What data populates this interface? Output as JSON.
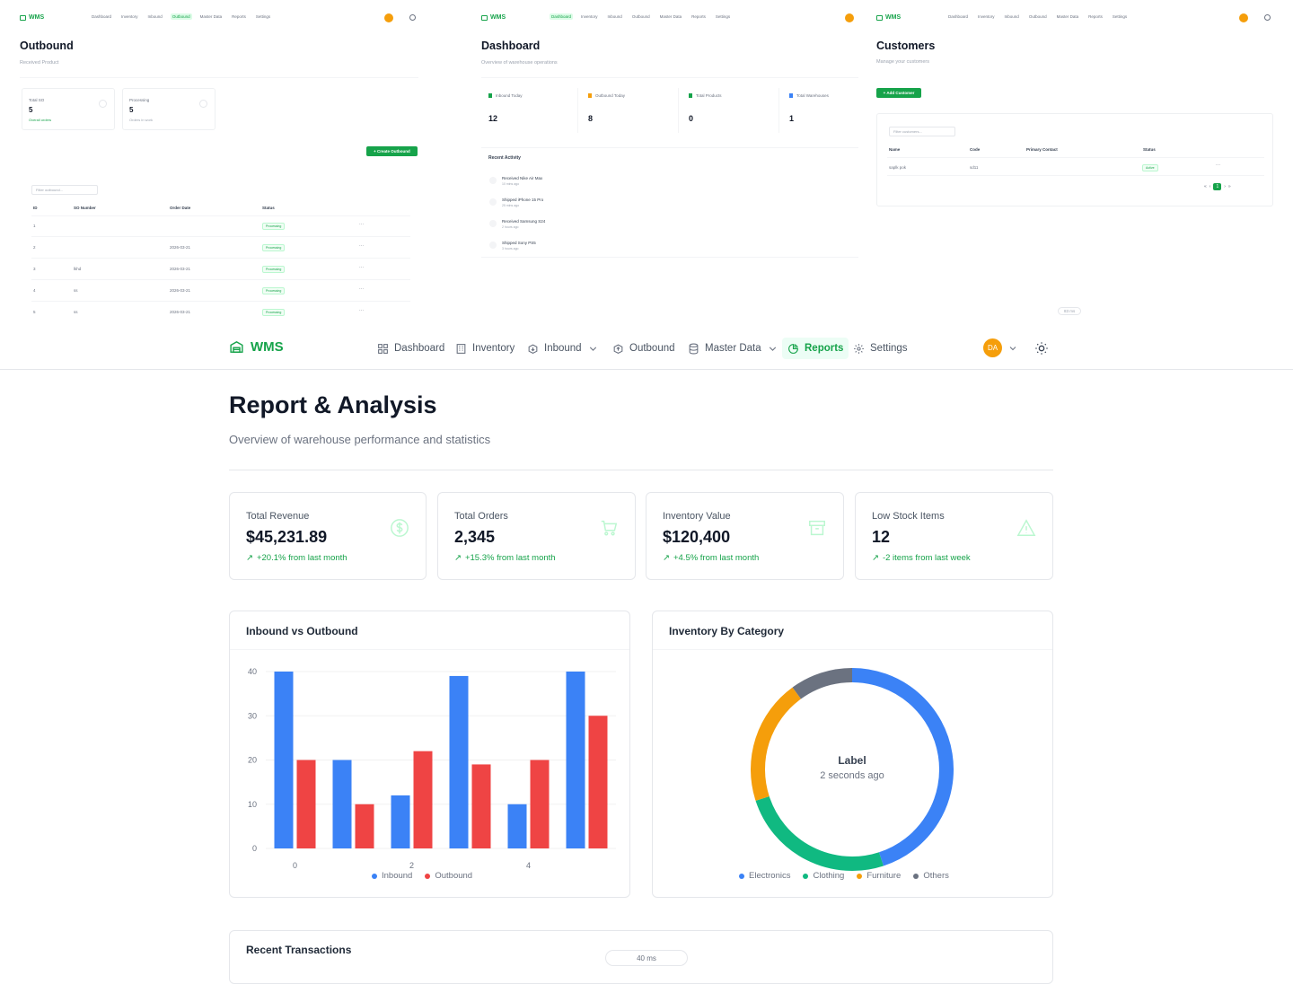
{
  "brand": "WMS",
  "user_initials": "DA",
  "nav": {
    "dashboard": "Dashboard",
    "inventory": "Inventory",
    "inbound": "Inbound",
    "outbound": "Outbound",
    "master_data": "Master Data",
    "reports": "Reports",
    "settings": "Settings"
  },
  "outbound_panel": {
    "title": "Outbound",
    "subtitle": "Received Product",
    "cards": [
      {
        "label": "Total SO",
        "value": "5",
        "trend": "Overall orders"
      },
      {
        "label": "Processing",
        "value": "5",
        "trend": "Orders in work"
      }
    ],
    "create_button": "+ Create Outbound",
    "filter_placeholder": "Filter outbound...",
    "columns": [
      "ID",
      "SO Number",
      "Order Date",
      "Status"
    ],
    "rows": [
      {
        "id": "1",
        "so": "",
        "date": "",
        "status": "Processing"
      },
      {
        "id": "2",
        "so": "",
        "date": "2026-03-21",
        "status": "Processing"
      },
      {
        "id": "3",
        "so": "lkhd",
        "date": "2026-03-21",
        "status": "Processing"
      },
      {
        "id": "4",
        "so": "ss",
        "date": "2026-03-21",
        "status": "Processing"
      },
      {
        "id": "5",
        "so": "ss",
        "date": "2026-03-21",
        "status": "Processing"
      }
    ]
  },
  "dashboard_panel": {
    "title": "Dashboard",
    "subtitle": "Overview of warehouse operations",
    "stats": [
      {
        "label": "Inbound Today",
        "value": "12"
      },
      {
        "label": "Outbound Today",
        "value": "8"
      },
      {
        "label": "Total Products",
        "value": "0"
      },
      {
        "label": "Total Warehouses",
        "value": "1"
      }
    ],
    "recent_title": "Recent Activity",
    "activities": [
      {
        "text": "Received Nike Air Max",
        "time": "10 mins ago"
      },
      {
        "text": "Shipped iPhone 15 Pro",
        "time": "25 mins ago"
      },
      {
        "text": "Received Samsung S24",
        "time": "2 hours ago"
      },
      {
        "text": "Shipped Sony PS5",
        "time": "3 hours ago"
      }
    ]
  },
  "customers_panel": {
    "title": "Customers",
    "subtitle": "Manage your customers",
    "add_button": "+ Add Customer",
    "filter_placeholder": "Filter customers...",
    "columns": [
      "Name",
      "Code",
      "Primary Contact",
      "Status"
    ],
    "rows": [
      {
        "name": "saplk pok",
        "code": "sd11",
        "contact": "",
        "status": "Active"
      }
    ],
    "page": "1",
    "footer_text": "83 ms"
  },
  "report": {
    "title": "Report & Analysis",
    "subtitle": "Overview of warehouse performance and statistics",
    "cards": [
      {
        "label": "Total Revenue",
        "value": "$45,231.89",
        "trend": "+20.1% from last month",
        "icon": "dollar-icon"
      },
      {
        "label": "Total Orders",
        "value": "2,345",
        "trend": "+15.3% from last month",
        "icon": "cart-icon"
      },
      {
        "label": "Inventory Value",
        "value": "$120,400",
        "trend": "+4.5% from last month",
        "icon": "archive-icon"
      },
      {
        "label": "Low Stock Items",
        "value": "12",
        "trend": "-2 items from last week",
        "icon": "warning-icon"
      }
    ],
    "bar_chart_title": "Inbound vs Outbound",
    "donut_title": "Inventory By Category",
    "donut_center_label": "Label",
    "donut_center_sub": "2 seconds ago",
    "recent_transactions_title": "Recent Transactions",
    "bottom_badge": "40 ms"
  },
  "colors": {
    "brand": "#16a34a",
    "inbound": "#3b82f6",
    "outbound": "#ef4444",
    "electronics": "#3b82f6",
    "clothing": "#10b981",
    "furniture": "#f59e0b",
    "others": "#6b7280",
    "avatar": "#f59e0b"
  },
  "chart_data": [
    {
      "type": "bar",
      "title": "Inbound vs Outbound",
      "x": [
        0,
        1,
        2,
        3,
        4,
        5
      ],
      "x_tick_labels": [
        "0",
        "2",
        "4"
      ],
      "ylim": [
        0,
        40
      ],
      "y_ticks": [
        0,
        10,
        20,
        30,
        40
      ],
      "grid": true,
      "legend": "bottom",
      "series": [
        {
          "name": "Inbound",
          "color": "#3b82f6",
          "values": [
            40,
            20,
            12,
            39,
            10,
            40
          ]
        },
        {
          "name": "Outbound",
          "color": "#ef4444",
          "values": [
            20,
            10,
            22,
            19,
            20,
            30
          ]
        }
      ]
    },
    {
      "type": "pie",
      "title": "Inventory By Category",
      "donut": true,
      "legend": "bottom",
      "categories": [
        "Electronics",
        "Clothing",
        "Furniture",
        "Others"
      ],
      "values": [
        45,
        25,
        20,
        10
      ],
      "colors": [
        "#3b82f6",
        "#10b981",
        "#f59e0b",
        "#6b7280"
      ]
    }
  ]
}
